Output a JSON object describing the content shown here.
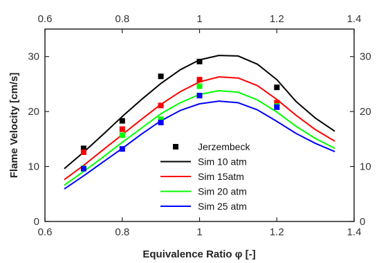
{
  "chart_data": {
    "type": "line",
    "title": "",
    "xlabel": "Equivalence Ratio φ [-]",
    "ylabel": "Flame Velocity [cm/s]",
    "xlim": [
      0.6,
      1.4
    ],
    "ylim": [
      0,
      35
    ],
    "xticks": [
      "0.6",
      "0.8",
      "1",
      "1.2",
      "1.4"
    ],
    "yticks": [
      "0",
      "10",
      "20",
      "30"
    ],
    "top_xticks": [
      "0.6",
      "0.8",
      "1",
      "1.2",
      "1.4"
    ],
    "right_yticks": [
      "0",
      "10",
      "20",
      "30"
    ],
    "grid": false,
    "legend_position": "center",
    "series": [
      {
        "name": "Sim 10 atm",
        "kind": "line",
        "color": "#000000",
        "x": [
          0.65,
          0.7,
          0.75,
          0.8,
          0.85,
          0.9,
          0.95,
          1.0,
          1.05,
          1.1,
          1.15,
          1.2,
          1.25,
          1.3,
          1.35
        ],
        "y": [
          9.6,
          12.6,
          15.8,
          19.1,
          22.2,
          25.1,
          27.6,
          29.4,
          30.2,
          30.1,
          28.6,
          25.8,
          21.8,
          18.8,
          16.4
        ]
      },
      {
        "name": "Sim 15atm",
        "kind": "line",
        "color": "#ff0000",
        "x": [
          0.65,
          0.7,
          0.75,
          0.8,
          0.85,
          0.9,
          0.95,
          1.0,
          1.05,
          1.1,
          1.15,
          1.2,
          1.25,
          1.3,
          1.35
        ],
        "y": [
          7.6,
          10.2,
          13.0,
          15.8,
          18.6,
          21.3,
          23.6,
          25.4,
          26.3,
          26.1,
          24.7,
          22.2,
          19.3,
          16.7,
          14.6
        ]
      },
      {
        "name": "Sim 20 atm",
        "kind": "line",
        "color": "#00ff00",
        "x": [
          0.65,
          0.7,
          0.75,
          0.8,
          0.85,
          0.9,
          0.95,
          1.0,
          1.05,
          1.1,
          1.15,
          1.2,
          1.25,
          1.3,
          1.35
        ],
        "y": [
          6.6,
          9.1,
          11.7,
          14.4,
          17.0,
          19.6,
          21.6,
          23.1,
          23.8,
          23.5,
          22.1,
          19.9,
          17.3,
          15.1,
          13.3
        ]
      },
      {
        "name": "Sim 25 atm",
        "kind": "line",
        "color": "#0000ff",
        "x": [
          0.65,
          0.7,
          0.75,
          0.8,
          0.85,
          0.9,
          0.95,
          1.0,
          1.05,
          1.1,
          1.15,
          1.2,
          1.25,
          1.3,
          1.35
        ],
        "y": [
          5.9,
          8.3,
          10.8,
          13.3,
          15.9,
          18.3,
          20.2,
          21.4,
          21.9,
          21.6,
          20.3,
          18.2,
          16.0,
          14.2,
          12.7
        ]
      }
    ],
    "markers": [
      {
        "name": "Jerzembeck",
        "color": "#000000",
        "x": [
          0.7,
          0.8,
          0.9,
          1.0,
          1.2
        ],
        "y": [
          13.3,
          18.3,
          26.4,
          29.1,
          24.4
        ]
      },
      {
        "name": "",
        "color": "#ff0000",
        "x": [
          0.7,
          0.8,
          0.9,
          1.0,
          1.2
        ],
        "y": [
          12.6,
          16.8,
          21.1,
          25.8,
          21.6
        ]
      },
      {
        "name": "",
        "color": "#00ff00",
        "x": [
          0.7,
          0.8,
          0.9,
          1.0,
          1.2
        ],
        "y": [
          9.7,
          15.7,
          18.6,
          24.6,
          21.0
        ]
      },
      {
        "name": "",
        "color": "#0000ff",
        "x": [
          0.7,
          0.8,
          0.9,
          1.0,
          1.2
        ],
        "y": [
          9.6,
          13.2,
          18.0,
          22.9,
          20.8
        ]
      }
    ],
    "legend": [
      {
        "label": "Jerzembeck",
        "kind": "marker",
        "color": "#000000"
      },
      {
        "label": "Sim 10 atm",
        "kind": "line",
        "color": "#000000"
      },
      {
        "label": "Sim 15atm",
        "kind": "line",
        "color": "#ff0000"
      },
      {
        "label": "Sim 20 atm",
        "kind": "line",
        "color": "#00ff00"
      },
      {
        "label": "Sim 25 atm",
        "kind": "line",
        "color": "#0000ff"
      }
    ]
  }
}
